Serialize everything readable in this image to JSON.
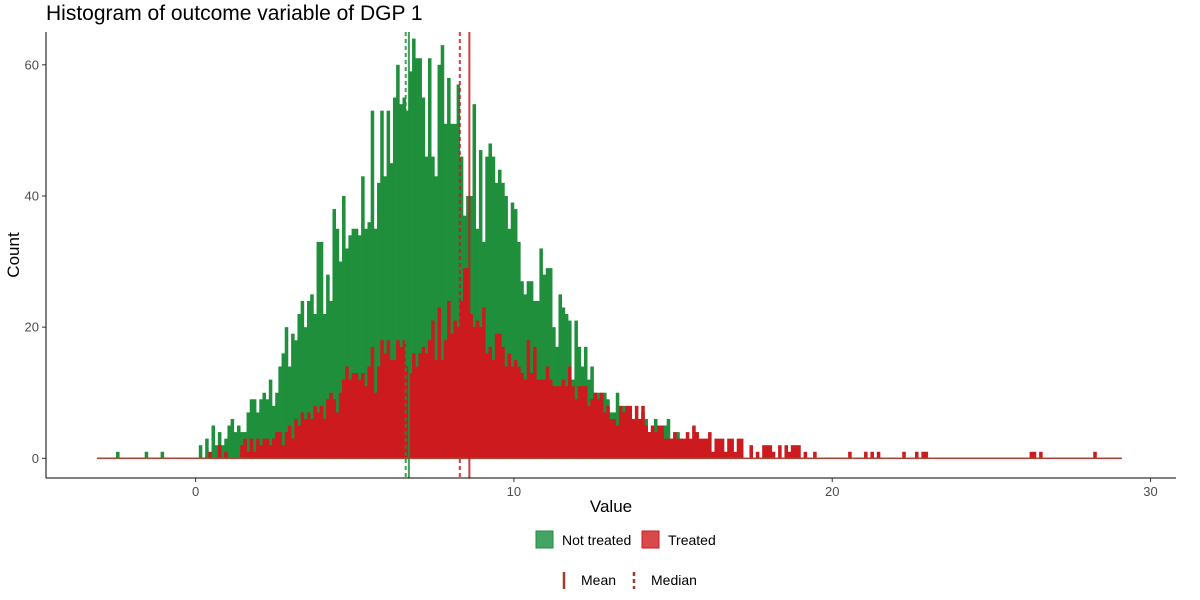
{
  "chart_data": {
    "type": "bar",
    "title": "Histogram of outcome variable of DGP 1",
    "xlabel": "Value",
    "ylabel": "Count",
    "xlim": [
      -4.7,
      30.8
    ],
    "ylim": [
      -3.0,
      65.0
    ],
    "x_ticks": [
      0,
      10,
      20,
      30
    ],
    "y_ticks": [
      0,
      20,
      40,
      60
    ],
    "grid": false,
    "legend_position": "bottom",
    "bin_width": 0.1,
    "data_range": [
      -3.1,
      29.1
    ],
    "colors": {
      "not_treated": "#1f8f3c",
      "treated": "#cc1a1e",
      "not_treated_legend": "#44a465",
      "treated_legend": "#d9494c",
      "reference_line": "#a33a2a"
    },
    "series": [
      {
        "name": "Not treated",
        "peak_x": 7.0,
        "peak_count": 61,
        "approx_profile": [
          {
            "x": 0.5,
            "count": 3
          },
          {
            "x": 1.5,
            "count": 5
          },
          {
            "x": 2.5,
            "count": 12
          },
          {
            "x": 3.5,
            "count": 22
          },
          {
            "x": 4.5,
            "count": 33
          },
          {
            "x": 5.5,
            "count": 42
          },
          {
            "x": 6.5,
            "count": 50
          },
          {
            "x": 7.0,
            "count": 55
          },
          {
            "x": 8.0,
            "count": 52
          },
          {
            "x": 9.0,
            "count": 43
          },
          {
            "x": 10.0,
            "count": 34
          },
          {
            "x": 11.0,
            "count": 25
          },
          {
            "x": 12.0,
            "count": 16
          },
          {
            "x": 13.0,
            "count": 9
          },
          {
            "x": 14.0,
            "count": 5
          },
          {
            "x": 15.0,
            "count": 3
          }
        ],
        "mean": 6.7,
        "median": 6.6
      },
      {
        "name": "Treated",
        "peak_x": 8.5,
        "peak_count": 29,
        "approx_profile": [
          {
            "x": 0.5,
            "count": 1
          },
          {
            "x": 1.5,
            "count": 2
          },
          {
            "x": 2.5,
            "count": 3
          },
          {
            "x": 3.5,
            "count": 6
          },
          {
            "x": 4.5,
            "count": 10
          },
          {
            "x": 5.5,
            "count": 14
          },
          {
            "x": 6.5,
            "count": 17
          },
          {
            "x": 7.5,
            "count": 19
          },
          {
            "x": 8.5,
            "count": 20
          },
          {
            "x": 9.5,
            "count": 17
          },
          {
            "x": 10.5,
            "count": 15
          },
          {
            "x": 11.5,
            "count": 12
          },
          {
            "x": 12.5,
            "count": 9
          },
          {
            "x": 13.5,
            "count": 7
          },
          {
            "x": 15.0,
            "count": 4
          },
          {
            "x": 17.0,
            "count": 2
          },
          {
            "x": 20.0,
            "count": 1
          }
        ],
        "mean": 8.6,
        "median": 8.3,
        "sparse_tail_x": [
          20.5,
          21.0,
          21.2,
          21.4,
          22.2,
          22.6,
          22.8,
          22.9,
          26.2,
          26.3,
          26.5,
          28.2
        ]
      }
    ],
    "reference_lines": [
      {
        "series": "Not treated",
        "stat": "Mean",
        "x": 6.7
      },
      {
        "series": "Not treated",
        "stat": "Median",
        "x": 6.6
      },
      {
        "series": "Treated",
        "stat": "Mean",
        "x": 8.6
      },
      {
        "series": "Treated",
        "stat": "Median",
        "x": 8.3
      }
    ],
    "legend": {
      "fill_items": [
        "Not treated",
        "Treated"
      ],
      "line_items": [
        {
          "label": "Mean",
          "style": "solid"
        },
        {
          "label": "Median",
          "style": "dashed"
        }
      ]
    }
  }
}
